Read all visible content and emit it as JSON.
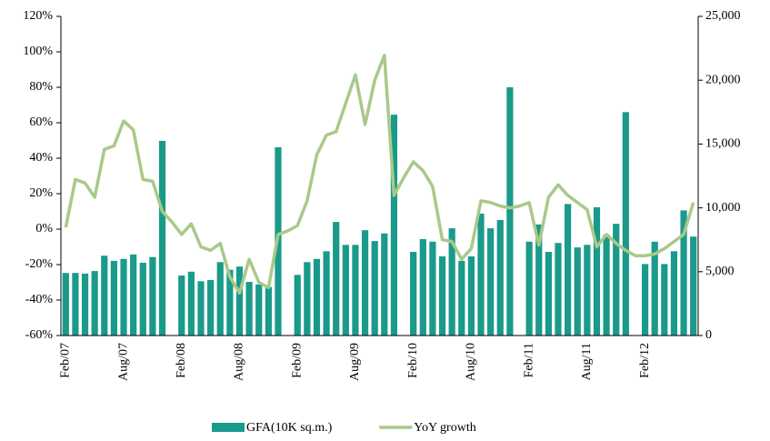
{
  "chart_data": {
    "type": "combo",
    "categories": [
      "Feb/07",
      null,
      null,
      null,
      null,
      null,
      "Aug/07",
      null,
      null,
      null,
      null,
      null,
      "Feb/08",
      null,
      null,
      null,
      null,
      null,
      "Aug/08",
      null,
      null,
      null,
      null,
      null,
      "Feb/09",
      null,
      null,
      null,
      null,
      null,
      "Aug/09",
      null,
      null,
      null,
      null,
      null,
      "Feb/10",
      null,
      null,
      null,
      null,
      null,
      "Aug/10",
      null,
      null,
      null,
      null,
      null,
      "Feb/11",
      null,
      null,
      null,
      null,
      null,
      "Aug/11",
      null,
      null,
      null,
      null,
      null,
      "Feb/12",
      null,
      null,
      null,
      null,
      null
    ],
    "series": [
      {
        "name": "GFA(10K sq.m.)",
        "type": "bar",
        "axis": "y2",
        "color": "#1a9a8a",
        "values": [
          4900,
          4900,
          4850,
          5050,
          6250,
          5850,
          6000,
          6350,
          5700,
          6150,
          15250,
          null,
          4700,
          5000,
          4250,
          4350,
          5750,
          5150,
          5400,
          4200,
          4000,
          3800,
          14750,
          null,
          4750,
          5750,
          6000,
          6600,
          8900,
          7100,
          7100,
          8250,
          7400,
          8000,
          17300,
          null,
          6550,
          7550,
          7350,
          6200,
          8400,
          5850,
          6200,
          9550,
          8400,
          9050,
          19450,
          null,
          7350,
          8700,
          6550,
          7250,
          10300,
          6900,
          7100,
          10050,
          7900,
          8750,
          17500,
          null,
          5600,
          7350,
          5600,
          6600,
          9800,
          7750
        ]
      },
      {
        "name": "YoY growth",
        "type": "line",
        "color": "#a9c98a",
        "values": [
          1,
          28,
          26,
          18,
          45,
          47,
          61,
          56,
          28,
          27,
          10,
          4,
          -3,
          3,
          -10,
          -12,
          -8,
          -27,
          -36,
          -17,
          -30,
          -33,
          -3,
          -1,
          2,
          16,
          42,
          53,
          55,
          71,
          87,
          59,
          84,
          98,
          19,
          29,
          38,
          33,
          24,
          -6,
          -7,
          -17,
          -11,
          16,
          15,
          13,
          12,
          13,
          15,
          -9,
          18,
          25,
          19,
          15,
          11,
          -10,
          -3,
          -8,
          -12,
          -15,
          -15,
          -14,
          -11,
          -7,
          -3,
          15
        ]
      }
    ],
    "ylim": [
      -60,
      120
    ],
    "yticks": [
      {
        "value": -60,
        "label": "-60%"
      },
      {
        "value": -40,
        "label": "-40%"
      },
      {
        "value": -20,
        "label": "-20%"
      },
      {
        "value": 0,
        "label": "0%"
      },
      {
        "value": 20,
        "label": "20%"
      },
      {
        "value": 40,
        "label": "40%"
      },
      {
        "value": 60,
        "label": "60%"
      },
      {
        "value": 80,
        "label": "80%"
      },
      {
        "value": 100,
        "label": "100%"
      },
      {
        "value": 120,
        "label": "120%"
      }
    ],
    "y2lim": [
      0,
      25000
    ],
    "y2ticks": [
      0,
      {
        "value": 5000,
        "label": "5,000"
      },
      {
        "value": 10000,
        "label": "10,000"
      },
      {
        "value": 15000,
        "label": "15,000"
      },
      {
        "value": 20000,
        "label": "20,000"
      },
      {
        "value": 25000,
        "label": "25,000"
      }
    ],
    "legend": "bottom"
  }
}
